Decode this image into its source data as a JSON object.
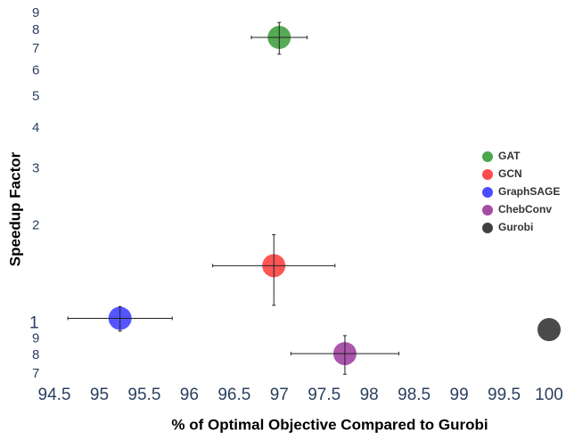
{
  "chart_data": {
    "type": "scatter",
    "x_label": "% of Optimal Objective Compared to Gurobi",
    "y_label": "Speedup Factor",
    "xlim": [
      94.5,
      100
    ],
    "xticks": [
      94.5,
      95,
      95.5,
      96,
      96.5,
      97,
      97.5,
      98,
      98.5,
      99,
      99.5,
      100
    ],
    "ylim": [
      0.65,
      9.6
    ],
    "log_y": true,
    "yticks": [
      {
        "value": 0.7,
        "label": "7"
      },
      {
        "value": 0.8,
        "label": "8"
      },
      {
        "value": 0.9,
        "label": "9"
      },
      1,
      2,
      3,
      4,
      5,
      6,
      7,
      8,
      9
    ],
    "legend": "right",
    "series": [
      {
        "name": "GAT",
        "color": "#4ca64c",
        "x": [
          97
        ],
        "values": [
          7.6
        ],
        "error_x": [
          0.31
        ],
        "error_y": [
          0.85
        ]
      },
      {
        "name": "GCN",
        "color": "#ff4c4c",
        "x": [
          96.94
        ],
        "values": [
          1.51
        ],
        "error_x": [
          0.68
        ],
        "error_y": [
          0.37
        ]
      },
      {
        "name": "GraphSAGE",
        "color": "#4c4cff",
        "x": [
          95.23
        ],
        "values": [
          1.04
        ],
        "error_x": [
          0.58
        ],
        "error_y": [
          0.09
        ]
      },
      {
        "name": "ChebConv",
        "color": "#a64ca6",
        "x": [
          97.73
        ],
        "values": [
          0.81
        ],
        "error_x": [
          0.6
        ],
        "error_y": [
          0.11
        ]
      },
      {
        "name": "Gurobi",
        "color": "#404040",
        "x": [
          100
        ],
        "values": [
          0.96
        ]
      }
    ]
  }
}
